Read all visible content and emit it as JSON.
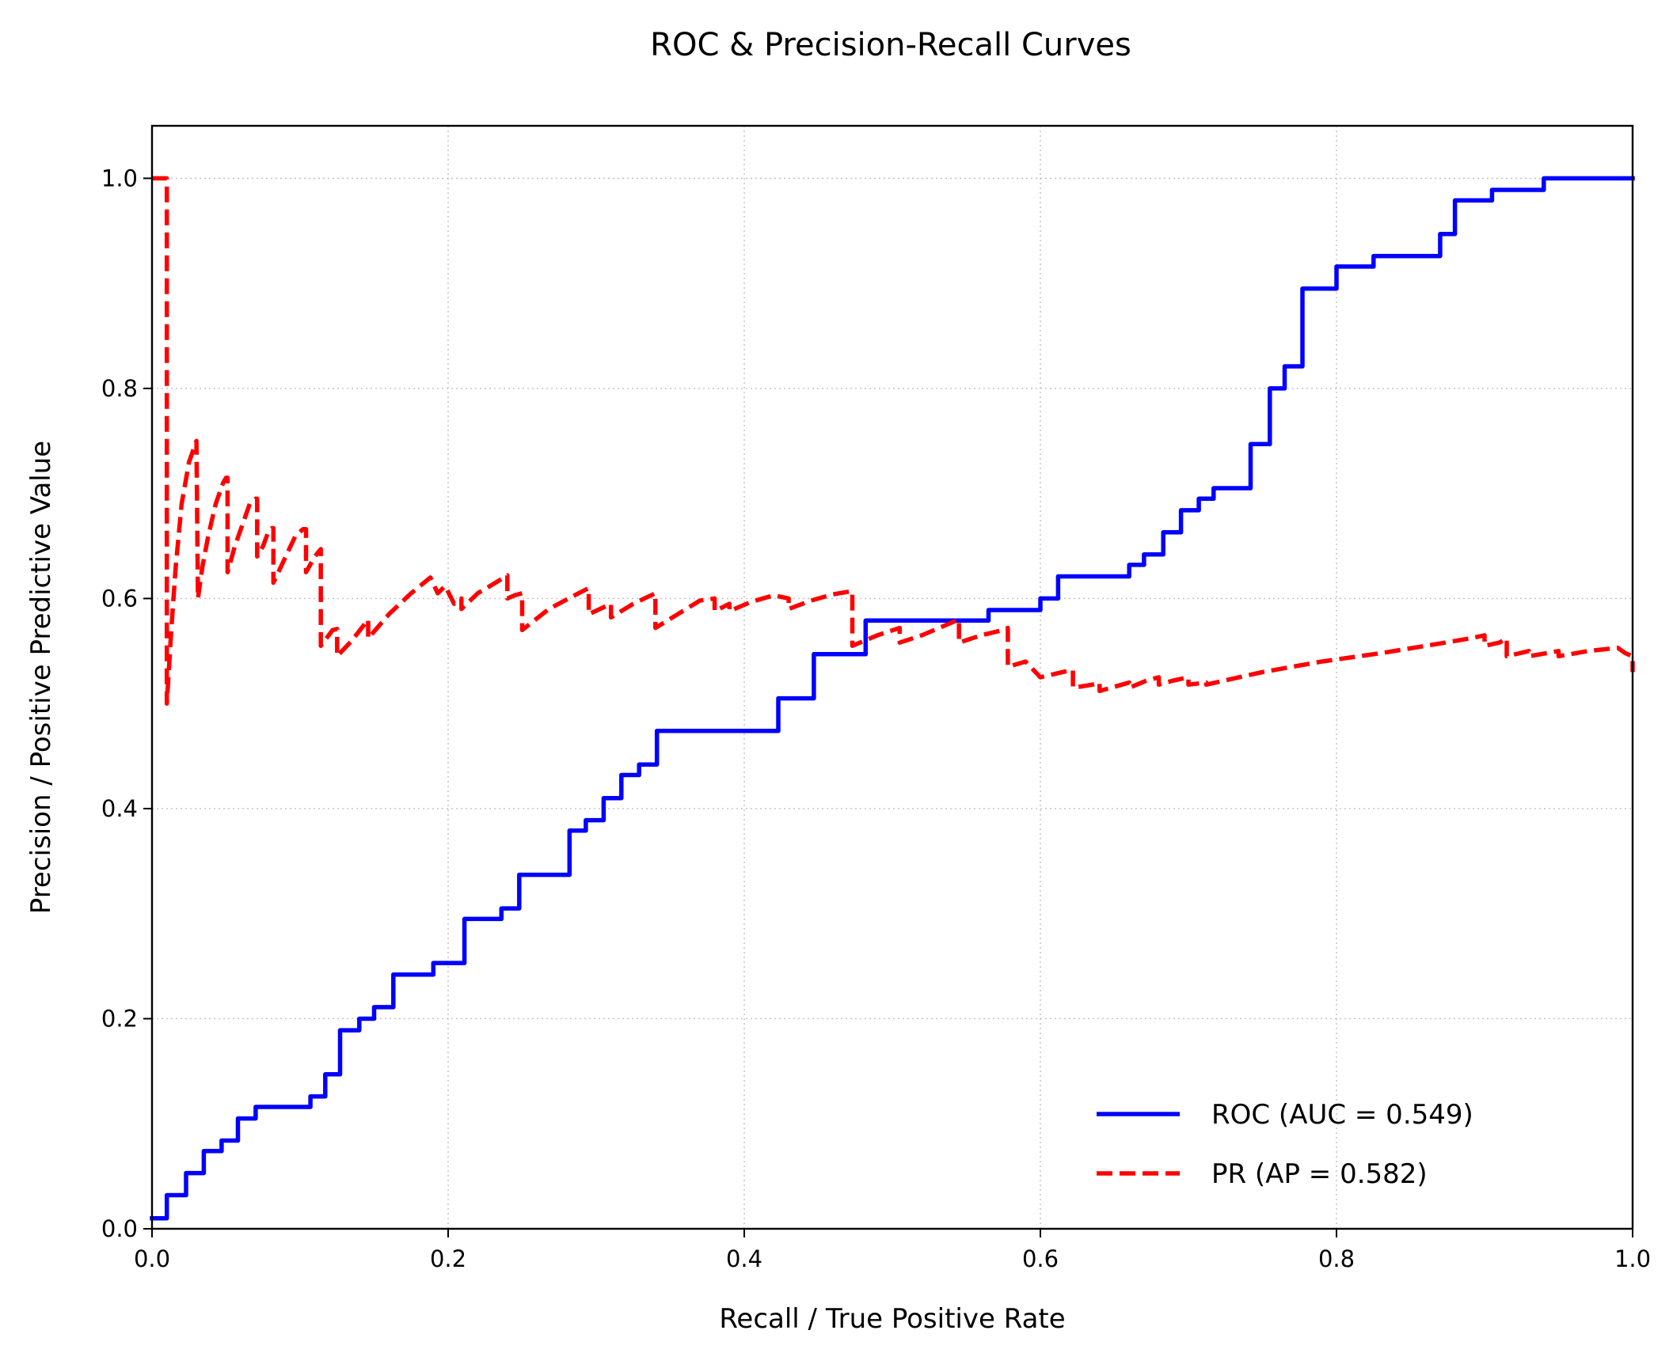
{
  "chart_data": {
    "type": "line",
    "title": "ROC & Precision-Recall Curves",
    "xlabel": "Recall / True Positive Rate",
    "ylabel": "Precision / Positive Predictive Value",
    "xlim": [
      0,
      1
    ],
    "ylim": [
      0,
      1.05
    ],
    "xticks": [
      "0.0",
      "0.2",
      "0.4",
      "0.6",
      "0.8",
      "1.0"
    ],
    "yticks": [
      "0.0",
      "0.2",
      "0.4",
      "0.6",
      "0.8",
      "1.0"
    ],
    "grid": true,
    "grid_style": "dotted",
    "legend_position": "lower right",
    "series": [
      {
        "name": "ROC (AUC = 0.549)",
        "color": "#0000ff",
        "style": "solid",
        "step": true,
        "x": [
          0.0,
          0.01,
          0.01,
          0.023,
          0.023,
          0.035,
          0.035,
          0.047,
          0.047,
          0.058,
          0.058,
          0.07,
          0.07,
          0.107,
          0.107,
          0.117,
          0.117,
          0.127,
          0.127,
          0.14,
          0.14,
          0.15,
          0.15,
          0.163,
          0.163,
          0.19,
          0.19,
          0.211,
          0.211,
          0.236,
          0.236,
          0.248,
          0.248,
          0.282,
          0.282,
          0.293,
          0.293,
          0.305,
          0.305,
          0.317,
          0.317,
          0.329,
          0.329,
          0.341,
          0.341,
          0.423,
          0.423,
          0.447,
          0.447,
          0.482,
          0.482,
          0.565,
          0.565,
          0.6,
          0.6,
          0.612,
          0.612,
          0.66,
          0.66,
          0.67,
          0.67,
          0.683,
          0.683,
          0.695,
          0.695,
          0.707,
          0.707,
          0.717,
          0.717,
          0.742,
          0.742,
          0.755,
          0.755,
          0.765,
          0.765,
          0.777,
          0.777,
          0.8,
          0.8,
          0.825,
          0.825,
          0.87,
          0.87,
          0.88,
          0.88,
          0.905,
          0.905,
          0.94,
          0.94,
          1.0
        ],
        "y": [
          0.01,
          0.01,
          0.032,
          0.032,
          0.053,
          0.053,
          0.074,
          0.074,
          0.084,
          0.084,
          0.105,
          0.105,
          0.116,
          0.116,
          0.126,
          0.126,
          0.147,
          0.147,
          0.189,
          0.189,
          0.2,
          0.2,
          0.211,
          0.211,
          0.242,
          0.242,
          0.253,
          0.253,
          0.295,
          0.295,
          0.305,
          0.305,
          0.337,
          0.337,
          0.379,
          0.379,
          0.389,
          0.389,
          0.41,
          0.41,
          0.432,
          0.432,
          0.442,
          0.442,
          0.474,
          0.474,
          0.505,
          0.505,
          0.547,
          0.547,
          0.579,
          0.579,
          0.589,
          0.589,
          0.6,
          0.6,
          0.621,
          0.621,
          0.632,
          0.632,
          0.642,
          0.642,
          0.663,
          0.663,
          0.684,
          0.684,
          0.695,
          0.695,
          0.705,
          0.705,
          0.747,
          0.747,
          0.8,
          0.8,
          0.821,
          0.821,
          0.895,
          0.895,
          0.916,
          0.916,
          0.926,
          0.926,
          0.947,
          0.947,
          0.979,
          0.979,
          0.989,
          0.989,
          1.0,
          1.0
        ]
      },
      {
        "name": "PR (AP = 0.582)",
        "color": "#ff0000",
        "style": "dashed",
        "step": false,
        "x": [
          0.0,
          0.01,
          0.01,
          0.01,
          0.013,
          0.016,
          0.02,
          0.025,
          0.03,
          0.031,
          0.031,
          0.034,
          0.038,
          0.043,
          0.048,
          0.05,
          0.051,
          0.051,
          0.056,
          0.061,
          0.066,
          0.07,
          0.071,
          0.071,
          0.075,
          0.079,
          0.081,
          0.082,
          0.082,
          0.087,
          0.092,
          0.097,
          0.102,
          0.104,
          0.104,
          0.11,
          0.114,
          0.114,
          0.122,
          0.125,
          0.125,
          0.135,
          0.146,
          0.146,
          0.16,
          0.175,
          0.188,
          0.188,
          0.193,
          0.198,
          0.198,
          0.204,
          0.209,
          0.209,
          0.22,
          0.232,
          0.24,
          0.24,
          0.245,
          0.25,
          0.25,
          0.268,
          0.284,
          0.295,
          0.295,
          0.31,
          0.31,
          0.325,
          0.34,
          0.34,
          0.355,
          0.37,
          0.38,
          0.38,
          0.39,
          0.39,
          0.405,
          0.42,
          0.43,
          0.43,
          0.445,
          0.46,
          0.473,
          0.473,
          0.49,
          0.505,
          0.505,
          0.52,
          0.535,
          0.545,
          0.545,
          0.56,
          0.575,
          0.578,
          0.578,
          0.59,
          0.6,
          0.6,
          0.615,
          0.622,
          0.622,
          0.635,
          0.64,
          0.64,
          0.655,
          0.66,
          0.66,
          0.672,
          0.68,
          0.68,
          0.69,
          0.7,
          0.7,
          0.712,
          0.712,
          0.75,
          0.79,
          0.83,
          0.865,
          0.89,
          0.9,
          0.9,
          0.91,
          0.915,
          0.915,
          0.93,
          0.93,
          0.95,
          0.95,
          0.97,
          0.99,
          0.995,
          1.0,
          1.0
        ],
        "y": [
          1.0,
          1.0,
          0.5,
          0.5,
          0.57,
          0.63,
          0.69,
          0.73,
          0.75,
          0.6,
          0.6,
          0.63,
          0.66,
          0.69,
          0.71,
          0.715,
          0.715,
          0.625,
          0.65,
          0.67,
          0.69,
          0.695,
          0.695,
          0.64,
          0.65,
          0.665,
          0.667,
          0.667,
          0.615,
          0.63,
          0.645,
          0.66,
          0.666,
          0.666,
          0.625,
          0.64,
          0.647,
          0.555,
          0.57,
          0.571,
          0.545,
          0.56,
          0.58,
          0.562,
          0.585,
          0.605,
          0.62,
          0.62,
          0.605,
          0.612,
          0.612,
          0.595,
          0.6,
          0.59,
          0.605,
          0.615,
          0.622,
          0.6,
          0.603,
          0.605,
          0.57,
          0.59,
          0.602,
          0.61,
          0.585,
          0.595,
          0.582,
          0.595,
          0.605,
          0.572,
          0.585,
          0.598,
          0.6,
          0.588,
          0.595,
          0.588,
          0.597,
          0.603,
          0.6,
          0.59,
          0.598,
          0.604,
          0.607,
          0.555,
          0.565,
          0.572,
          0.558,
          0.565,
          0.574,
          0.58,
          0.558,
          0.565,
          0.57,
          0.572,
          0.535,
          0.54,
          0.525,
          0.525,
          0.53,
          0.532,
          0.515,
          0.518,
          0.52,
          0.512,
          0.518,
          0.52,
          0.515,
          0.522,
          0.525,
          0.518,
          0.522,
          0.525,
          0.518,
          0.52,
          0.518,
          0.53,
          0.54,
          0.548,
          0.556,
          0.562,
          0.565,
          0.555,
          0.558,
          0.562,
          0.545,
          0.55,
          0.545,
          0.55,
          0.545,
          0.55,
          0.553,
          0.548,
          0.545,
          0.53
        ]
      }
    ]
  }
}
